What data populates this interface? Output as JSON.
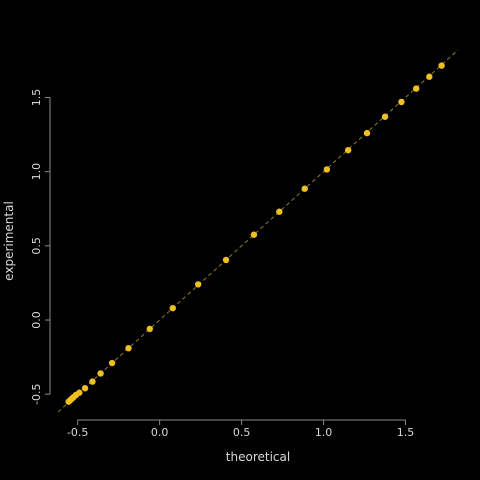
{
  "chart_data": {
    "type": "scatter",
    "title": "",
    "xlabel": "theoretical",
    "ylabel": "experimental",
    "xlim": [
      -0.62,
      1.82
    ],
    "ylim": [
      -0.62,
      1.82
    ],
    "x_ticks": [
      -0.5,
      0.0,
      0.5,
      1.0,
      1.5
    ],
    "x_tick_labels": [
      "-0.5",
      "0.0",
      "0.5",
      "1.0",
      "1.5"
    ],
    "y_ticks": [
      -0.5,
      0.0,
      0.5,
      1.0,
      1.5
    ],
    "y_tick_labels": [
      "-0.5",
      "0.0",
      "0.5",
      "1.0",
      "1.5"
    ],
    "grid": false,
    "background_color": "#000000",
    "point_color": "#f0c020",
    "reference_line": {
      "slope": 1,
      "intercept": 0,
      "style": "dashed",
      "color": "#8c7a2a"
    },
    "points": {
      "x": [
        -0.555,
        -0.545,
        -0.535,
        -0.525,
        -0.51,
        -0.49,
        -0.455,
        -0.41,
        -0.36,
        -0.29,
        -0.19,
        -0.06,
        0.08,
        0.235,
        0.405,
        0.575,
        0.73,
        0.885,
        1.02,
        1.15,
        1.265,
        1.375,
        1.475,
        1.565,
        1.645,
        1.72
      ],
      "y": [
        -0.55,
        -0.54,
        -0.53,
        -0.52,
        -0.505,
        -0.49,
        -0.46,
        -0.415,
        -0.36,
        -0.29,
        -0.19,
        -0.06,
        0.08,
        0.24,
        0.405,
        0.575,
        0.73,
        0.885,
        1.015,
        1.145,
        1.26,
        1.37,
        1.47,
        1.56,
        1.64,
        1.715
      ]
    }
  }
}
